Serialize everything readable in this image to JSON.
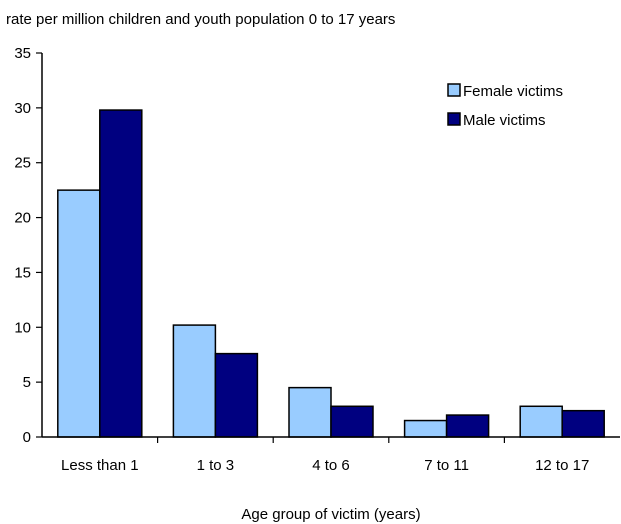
{
  "chart_data": {
    "type": "bar",
    "ylabel": "rate per million children and youth population 0 to 17 years",
    "xlabel": "Age group of victim (years)",
    "categories": [
      "Less than 1",
      "1 to 3",
      "4 to 6",
      "7 to 11",
      "12 to 17"
    ],
    "series": [
      {
        "name": "Female victims",
        "color": "#99ccff",
        "values": [
          22.5,
          10.2,
          4.5,
          1.5,
          2.8
        ]
      },
      {
        "name": "Male victims",
        "color": "#000080",
        "values": [
          29.8,
          7.6,
          2.8,
          2.0,
          2.4
        ]
      }
    ],
    "ylim": [
      0,
      35
    ],
    "yticks": [
      0,
      5,
      10,
      15,
      20,
      25,
      30,
      35
    ],
    "grid": false,
    "legend_position": "top-right"
  }
}
